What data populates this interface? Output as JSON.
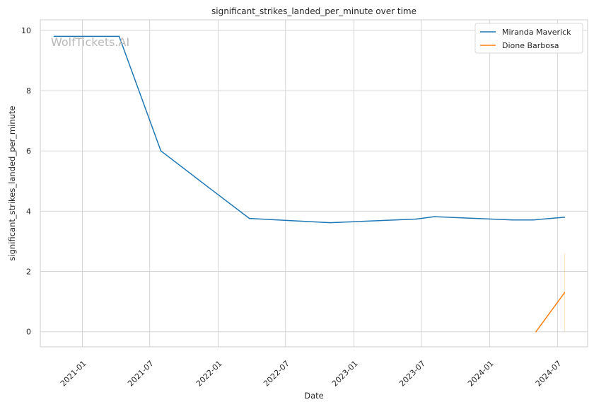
{
  "chart_data": {
    "type": "line",
    "title": "significant_strikes_landed_per_minute over time",
    "xlabel": "Date",
    "ylabel": "significant_strikes_landed_per_minute",
    "watermark": "WolfTickets.AI",
    "x_ticks": [
      "2021-01",
      "2021-07",
      "2022-01",
      "2022-07",
      "2023-01",
      "2023-07",
      "2024-01",
      "2024-07"
    ],
    "y_ticks": [
      0,
      2,
      4,
      6,
      8,
      10
    ],
    "xlim": [
      "2020-09-10",
      "2024-09-20"
    ],
    "ylim": [
      -0.5,
      10.35
    ],
    "grid": true,
    "legend_position": "top-right",
    "series": [
      {
        "name": "Miranda Maverick",
        "color": "#1f77b4",
        "points": [
          {
            "x": "2020-10-17",
            "y": 9.8
          },
          {
            "x": "2021-04-10",
            "y": 9.8
          },
          {
            "x": "2021-07-31",
            "y": 6.0
          },
          {
            "x": "2021-12-05",
            "y": 4.8
          },
          {
            "x": "2022-03-26",
            "y": 3.76
          },
          {
            "x": "2022-10-29",
            "y": 3.62
          },
          {
            "x": "2023-06-17",
            "y": 3.74
          },
          {
            "x": "2023-08-05",
            "y": 3.82
          },
          {
            "x": "2024-03-02",
            "y": 3.71
          },
          {
            "x": "2024-04-27",
            "y": 3.71
          },
          {
            "x": "2024-07-20",
            "y": 3.8
          }
        ]
      },
      {
        "name": "Dione Barbosa",
        "color": "#ff7f0e",
        "points": [
          {
            "x": "2024-05-04",
            "y": 0.0
          },
          {
            "x": "2024-07-20",
            "y": 1.3
          }
        ],
        "error_band": {
          "x": "2024-07-20",
          "low": 0.0,
          "high": 2.6
        }
      }
    ]
  }
}
